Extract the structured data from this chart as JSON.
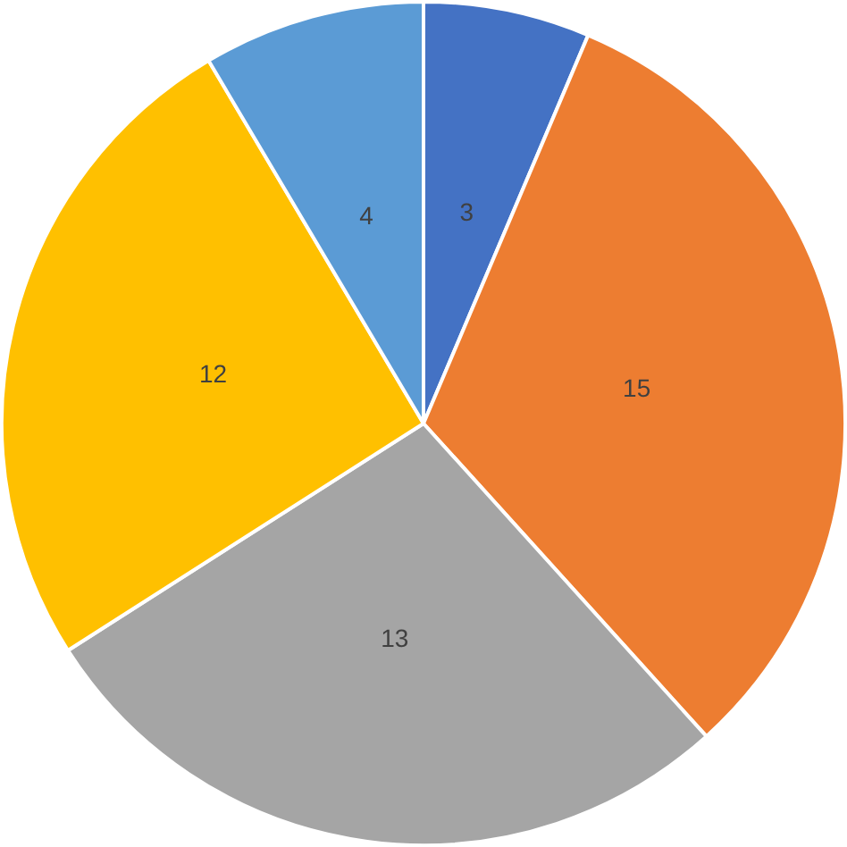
{
  "chart_data": {
    "type": "pie",
    "categories": [
      null,
      null,
      null,
      null,
      null
    ],
    "values": [
      3,
      15,
      13,
      12,
      4
    ],
    "colors": [
      "#4472c4",
      "#ed7d31",
      "#a5a5a5",
      "#ffc000",
      "#5b9bd5"
    ],
    "data_labels": true
  }
}
